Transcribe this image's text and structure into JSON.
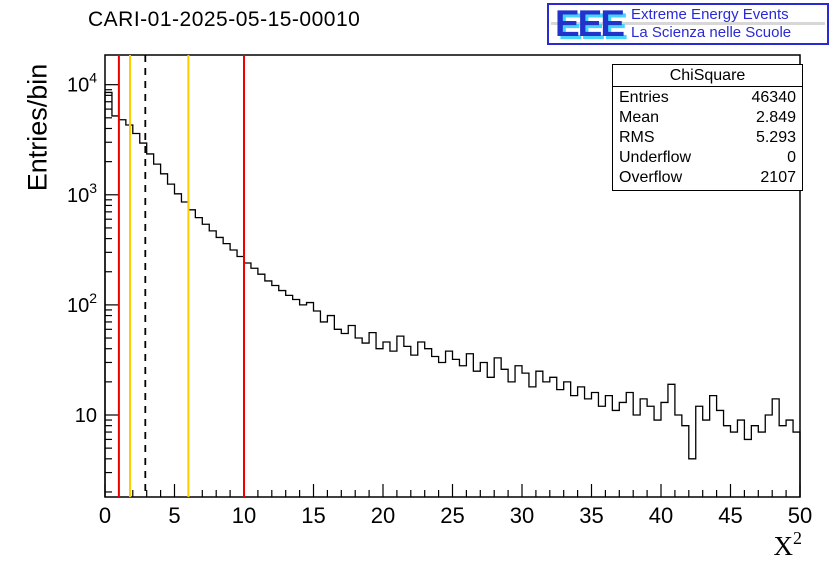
{
  "title": "CARI-01-2025-05-15-00010",
  "logo": {
    "acronym": "EEE",
    "line1": "Extreme Energy Events",
    "line2": "La Scienza nelle Scuole",
    "border_color": "#2a2ad4",
    "text_color": "#2a2ad4",
    "shadow_color": "#45d5ff"
  },
  "stats": {
    "title": "ChiSquare",
    "rows": [
      {
        "label": "Entries",
        "value": "46340"
      },
      {
        "label": "Mean",
        "value": "2.849"
      },
      {
        "label": "RMS",
        "value": "5.293"
      },
      {
        "label": "Underflow",
        "value": "0"
      },
      {
        "label": "Overflow",
        "value": "2107"
      }
    ]
  },
  "chart_data": {
    "type": "histogram-step",
    "title": "CARI-01-2025-05-15-00010",
    "xlabel": "X^2",
    "ylabel": "Entries/bin",
    "y_scale": "log",
    "grid": false,
    "xlim": [
      0,
      50
    ],
    "ylim": [
      1.8,
      18600
    ],
    "xticks": [
      0,
      5,
      10,
      15,
      20,
      25,
      30,
      35,
      40,
      45,
      50
    ],
    "x_minor_step": 1,
    "ytick_decades": [
      1,
      2,
      3,
      4
    ],
    "bin_start": 0,
    "bin_width": 0.5,
    "line_color": "#000000",
    "values": [
      8500,
      5200,
      4800,
      4300,
      3600,
      2950,
      2350,
      1900,
      1550,
      1250,
      1020,
      860,
      730,
      620,
      540,
      470,
      410,
      360,
      315,
      275,
      240,
      215,
      190,
      165,
      150,
      135,
      122,
      112,
      100,
      105,
      88,
      70,
      80,
      60,
      55,
      65,
      50,
      45,
      56,
      40,
      46,
      38,
      52,
      42,
      35,
      46,
      40,
      34,
      30,
      38,
      32,
      28,
      36,
      25,
      30,
      22,
      33,
      26,
      20,
      28,
      24,
      18,
      25,
      20,
      22,
      17,
      20,
      15,
      18,
      14,
      16,
      12,
      15,
      11,
      13,
      16,
      10,
      14,
      12,
      9,
      13,
      19,
      10,
      8,
      4,
      12,
      9,
      15,
      11,
      8,
      7,
      9,
      6,
      8,
      7,
      10,
      14,
      8,
      9,
      7
    ],
    "marker_lines": [
      {
        "x": 1.0,
        "color": "#ee0000",
        "style": "solid"
      },
      {
        "x": 1.8,
        "color": "#ffcc00",
        "style": "solid"
      },
      {
        "x": 2.9,
        "color": "#000000",
        "style": "dashed"
      },
      {
        "x": 6.0,
        "color": "#ffcc00",
        "style": "solid"
      },
      {
        "x": 10.0,
        "color": "#ee0000",
        "style": "solid"
      }
    ]
  }
}
